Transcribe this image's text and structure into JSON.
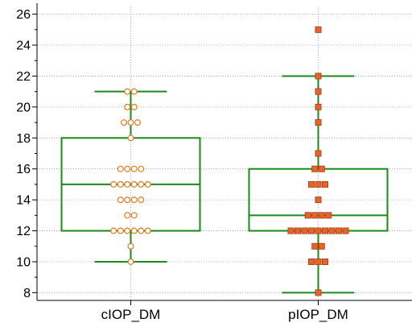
{
  "chart_data": {
    "type": "box",
    "categories": [
      "cIOP_DM",
      "pIOP_DM"
    ],
    "ylim": [
      7.5,
      26.5
    ],
    "y_ticks": [
      8,
      10,
      12,
      14,
      16,
      18,
      20,
      22,
      24,
      26
    ],
    "grid": true,
    "colors": {
      "box": "#1a8a1a",
      "cIOP_marker_edge": "#e07a1f",
      "cIOP_marker_fill": "#ffffff",
      "pIOP_marker_fill": "#e8622a",
      "pIOP_marker_edge": "#a04010"
    },
    "series": [
      {
        "category": "cIOP_DM",
        "marker": "open-circle",
        "whisker_low": 10,
        "q1": 12,
        "median": 15,
        "q3": 18,
        "whisker_high": 21,
        "points": [
          {
            "y": 21,
            "count": 2
          },
          {
            "y": 20,
            "count": 2
          },
          {
            "y": 19,
            "count": 3
          },
          {
            "y": 18,
            "count": 1
          },
          {
            "y": 16,
            "count": 4
          },
          {
            "y": 15,
            "count": 6
          },
          {
            "y": 14,
            "count": 4
          },
          {
            "y": 13,
            "count": 2
          },
          {
            "y": 12,
            "count": 6
          },
          {
            "y": 11,
            "count": 1
          },
          {
            "y": 10,
            "count": 1
          }
        ]
      },
      {
        "category": "pIOP_DM",
        "marker": "filled-square",
        "whisker_low": 8,
        "q1": 12,
        "median": 13,
        "q3": 16,
        "whisker_high": 22,
        "points": [
          {
            "y": 25,
            "count": 1
          },
          {
            "y": 22,
            "count": 1
          },
          {
            "y": 21,
            "count": 1
          },
          {
            "y": 20,
            "count": 1
          },
          {
            "y": 19,
            "count": 1
          },
          {
            "y": 17,
            "count": 1
          },
          {
            "y": 16,
            "count": 2
          },
          {
            "y": 15,
            "count": 3
          },
          {
            "y": 14,
            "count": 1
          },
          {
            "y": 13,
            "count": 4
          },
          {
            "y": 12,
            "count": 9
          },
          {
            "y": 11,
            "count": 2
          },
          {
            "y": 10,
            "count": 3
          },
          {
            "y": 8,
            "count": 1
          }
        ]
      }
    ]
  }
}
